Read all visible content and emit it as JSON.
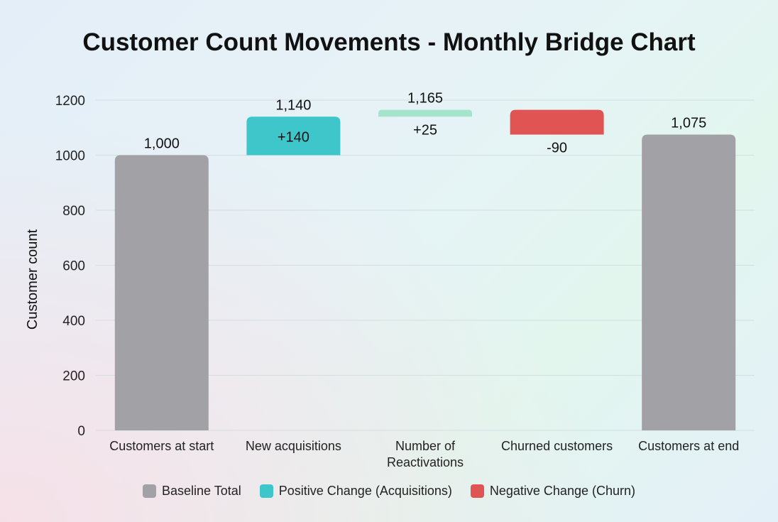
{
  "chart_data": {
    "type": "waterfall",
    "title": "Customer Count Movements - Monthly Bridge Chart",
    "ylabel": "Customer count",
    "xlabel": "",
    "ylim": [
      0,
      1200
    ],
    "yticks": [
      "0",
      "200",
      "400",
      "600",
      "800",
      "1000",
      "1200"
    ],
    "grid": true,
    "legend_position": "bottom",
    "categories": [
      "Customers at start",
      "New acquisitions",
      "Number of Reactivations",
      "Churned customers",
      "Customers at end"
    ],
    "bars": [
      {
        "kind": "total",
        "start": 0,
        "end": 1000,
        "top_label": "1,000",
        "change_label": ""
      },
      {
        "kind": "positive",
        "start": 1000,
        "end": 1140,
        "top_label": "1,140",
        "change_label": "+140"
      },
      {
        "kind": "reactivation",
        "start": 1140,
        "end": 1165,
        "top_label": "1,165",
        "change_label": "+25"
      },
      {
        "kind": "negative",
        "start": 1165,
        "end": 1075,
        "top_label": "",
        "change_label": "-90"
      },
      {
        "kind": "total",
        "start": 0,
        "end": 1075,
        "top_label": "1,075",
        "change_label": ""
      }
    ],
    "colors": {
      "total": "#a1a1a6",
      "positive": "#3ec6ca",
      "reactivation": "#a4e4cd",
      "negative": "#e05553"
    },
    "legend": [
      {
        "label": "Baseline Total",
        "color": "#a1a1a6"
      },
      {
        "label": "Positive Change (Acquisitions)",
        "color": "#3ec6ca"
      },
      {
        "label": "Negative Change (Churn)",
        "color": "#e05553"
      }
    ]
  }
}
